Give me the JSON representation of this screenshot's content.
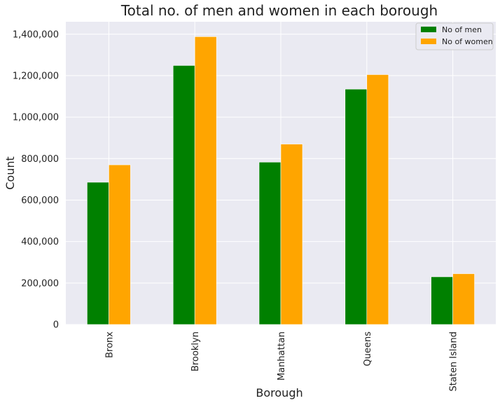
{
  "chart_data": {
    "type": "bar",
    "title": "Total no. of men and women in each borough",
    "xlabel": "Borough",
    "ylabel": "Count",
    "categories": [
      "Bronx",
      "Brooklyn",
      "Manhattan",
      "Queens",
      "Staten Island"
    ],
    "series": [
      {
        "name": "No of men",
        "color": "#008000",
        "values": [
          686000,
          1249000,
          783000,
          1135000,
          230000
        ]
      },
      {
        "name": "No of women",
        "color": "#ffa500",
        "values": [
          770000,
          1388000,
          870000,
          1205000,
          245000
        ]
      }
    ],
    "ylim": [
      0,
      1460000
    ],
    "yticks": [
      0,
      200000,
      400000,
      600000,
      800000,
      1000000,
      1200000,
      1400000
    ],
    "ytick_labels": [
      "0",
      "200,000",
      "400,000",
      "600,000",
      "800,000",
      "1,000,000",
      "1,200,000",
      "1,400,000"
    ],
    "grid": true,
    "legend_position": "top-right",
    "background": "#eaeaf2"
  }
}
